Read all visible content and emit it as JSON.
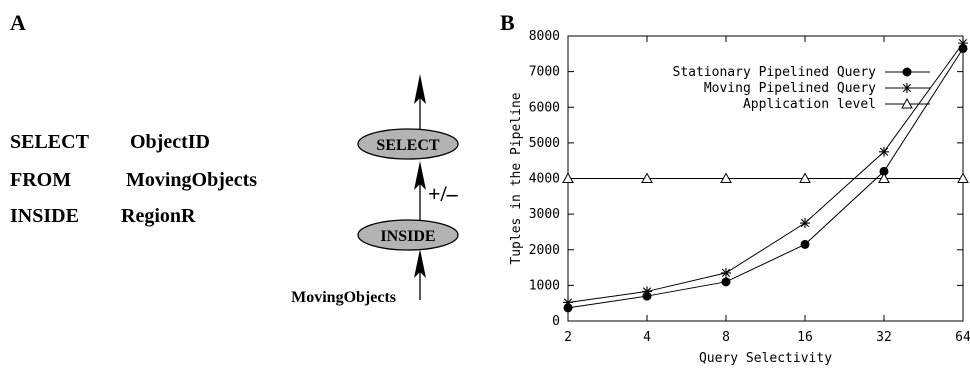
{
  "panel_a": {
    "letter": "A",
    "query": {
      "select_kw": "SELECT",
      "select_val": "ObjectID",
      "from_kw": "FROM",
      "from_val": "MovingObjects",
      "inside_kw": "INSIDE",
      "inside_val": "RegionR"
    },
    "plan": {
      "top_op": "SELECT",
      "bottom_op": "INSIDE",
      "edge_label": "+/–",
      "source": "MovingObjects"
    },
    "colors": {
      "operator_fill": "#b3b3b3"
    }
  },
  "panel_b": {
    "letter": "B"
  },
  "chart_data": {
    "type": "line",
    "xlabel": "Query Selectivity",
    "ylabel": "Tuples in the Pipeline",
    "x_scale": "log2",
    "x": [
      2,
      4,
      8,
      16,
      32,
      64
    ],
    "xticks": [
      "2",
      "4",
      "8",
      "16",
      "32",
      "64"
    ],
    "ylim": [
      0,
      8000
    ],
    "yticks": [
      "0",
      "1000",
      "2000",
      "3000",
      "4000",
      "5000",
      "6000",
      "7000",
      "8000"
    ],
    "grid": false,
    "legend_position": "top-left",
    "series": [
      {
        "name": "Stationary Pipelined Query",
        "marker": "filled-circle",
        "values": [
          370,
          700,
          1100,
          2150,
          4200,
          7650
        ]
      },
      {
        "name": "Moving Pipelined Query",
        "marker": "star",
        "values": [
          520,
          830,
          1350,
          2750,
          4750,
          7800
        ]
      },
      {
        "name": "Application level",
        "marker": "triangle",
        "values": [
          4000,
          4000,
          4000,
          4000,
          4000,
          4000
        ]
      }
    ]
  }
}
